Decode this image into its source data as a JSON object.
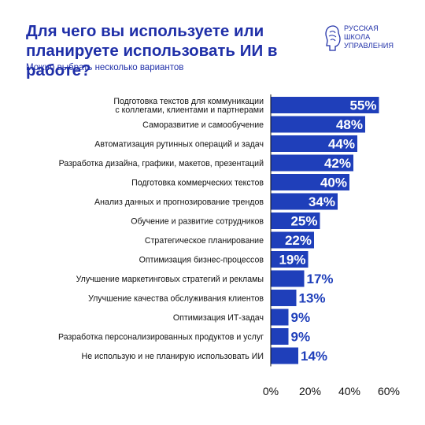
{
  "header": {
    "title": "Для чего вы используете или планируете использовать ИИ в работе?",
    "subtitle": "Можно выбрать несколько вариантов"
  },
  "logo": {
    "icon": "head-profile-icon",
    "lines": [
      "РУССКАЯ",
      "ШКОЛА",
      "УПРАВЛЕНИЯ"
    ]
  },
  "colors": {
    "bar": "#1f3fba",
    "text_on_bar": "#ffffff",
    "text_outside": "#1f3fba",
    "axis": "#111111"
  },
  "chart_data": {
    "type": "bar",
    "orientation": "horizontal",
    "categories": [
      [
        "Подготовка текстов для коммуникации",
        "с коллегами, клиентами и партнерами"
      ],
      [
        "Саморазвитие и самообучение"
      ],
      [
        "Автоматизация рутинных операций и задач"
      ],
      [
        "Разработка дизайна, графики, макетов, презентаций"
      ],
      [
        "Подготовка коммерческих текстов"
      ],
      [
        "Анализ данных и прогнозирование трендов"
      ],
      [
        "Обучение и развитие сотрудников"
      ],
      [
        "Стратегическое планирование"
      ],
      [
        "Оптимизация бизнес-процессов"
      ],
      [
        "Улучшение маркетинговых стратегий и рекламы"
      ],
      [
        "Улучшение качества обслуживания клиентов"
      ],
      [
        "Оптимизация ИТ-задач"
      ],
      [
        "Разработка персонализированных продуктов и услуг"
      ],
      [
        "Не использую и не планирую использовать ИИ"
      ]
    ],
    "values": [
      55,
      48,
      44,
      42,
      40,
      34,
      25,
      22,
      19,
      17,
      13,
      9,
      9,
      14
    ],
    "value_labels": [
      "55%",
      "48%",
      "44%",
      "42%",
      "40%",
      "34%",
      "25%",
      "22%",
      "19%",
      "17%",
      "13%",
      "9%",
      "9%",
      "14%"
    ],
    "label_inside": [
      true,
      true,
      true,
      true,
      true,
      true,
      true,
      true,
      true,
      false,
      false,
      false,
      false,
      false
    ],
    "x_ticks": [
      0,
      20,
      40,
      60
    ],
    "x_tick_labels": [
      "0%",
      "20%",
      "40%",
      "60%"
    ],
    "xlim": [
      0,
      60
    ],
    "grid": false,
    "legend": "none"
  }
}
